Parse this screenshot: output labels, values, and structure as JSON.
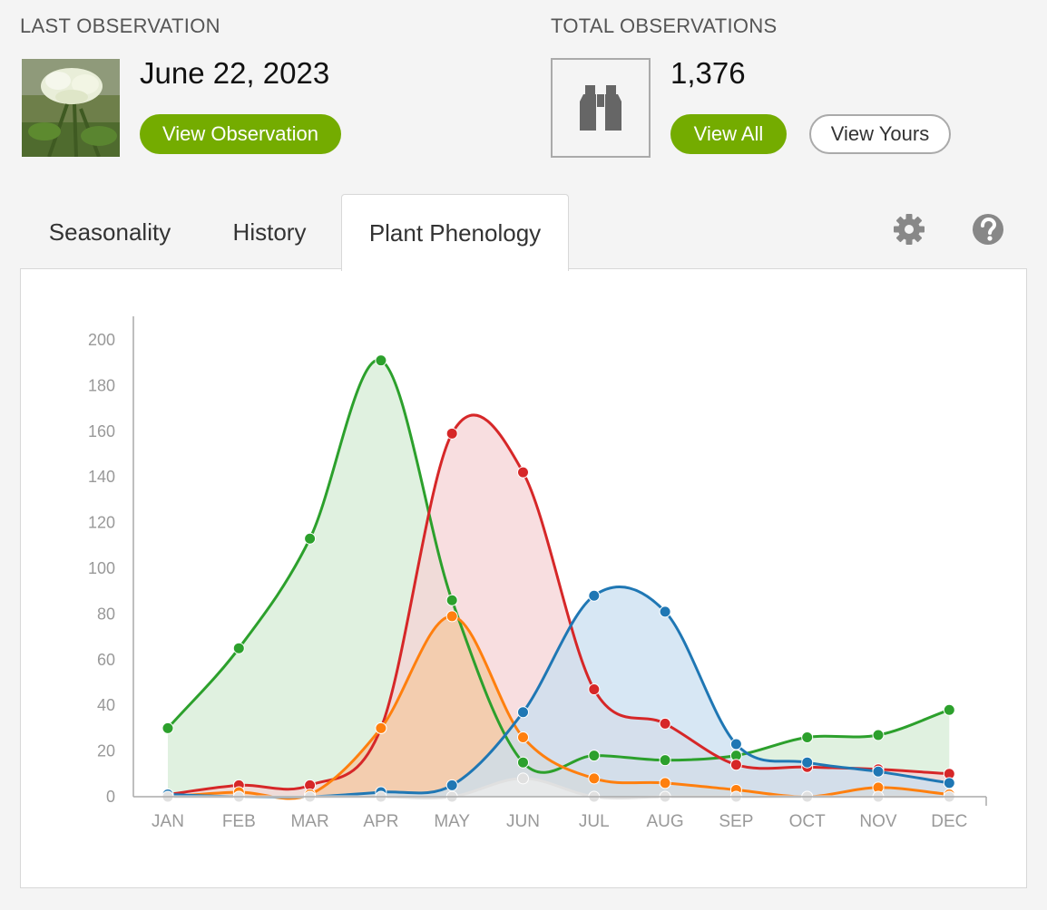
{
  "header": {
    "last_observation": {
      "label": "LAST OBSERVATION",
      "date": "June 22, 2023",
      "button_label": "View Observation"
    },
    "total_observations": {
      "label": "TOTAL OBSERVATIONS",
      "count": "1,376",
      "view_all_label": "View All",
      "view_yours_label": "View Yours"
    }
  },
  "tabs": [
    {
      "label": "Seasonality",
      "active": false
    },
    {
      "label": "History",
      "active": false
    },
    {
      "label": "Plant Phenology",
      "active": true
    }
  ],
  "icons": {
    "settings": "gear-icon",
    "help": "help-icon",
    "binoculars": "binoculars-icon"
  },
  "colors": {
    "accent_green": "#74ac00"
  },
  "chart_data": {
    "type": "area",
    "categories": [
      "JAN",
      "FEB",
      "MAR",
      "APR",
      "MAY",
      "JUN",
      "JUL",
      "AUG",
      "SEP",
      "OCT",
      "NOV",
      "DEC"
    ],
    "ylim": [
      0,
      200
    ],
    "yticks": [
      0,
      20,
      40,
      60,
      80,
      100,
      120,
      140,
      160,
      180,
      200
    ],
    "grid": false,
    "series": [
      {
        "color": "#2ca02c",
        "fill": "#d5ecd5",
        "values": [
          30,
          65,
          113,
          191,
          86,
          15,
          18,
          16,
          18,
          26,
          27,
          38
        ]
      },
      {
        "color": "#d62728",
        "fill": "#f5d3d5",
        "values": [
          1,
          5,
          5,
          30,
          159,
          142,
          47,
          32,
          14,
          13,
          12,
          10
        ]
      },
      {
        "color": "#ff7f0e",
        "fill": "#f4c8a2",
        "values": [
          0,
          2,
          1,
          30,
          79,
          26,
          8,
          6,
          3,
          0,
          4,
          1
        ]
      },
      {
        "color": "#1f77b4",
        "fill": "#c9dff0",
        "values": [
          1,
          0,
          0,
          2,
          5,
          37,
          88,
          81,
          23,
          15,
          11,
          6
        ]
      },
      {
        "color": "#e0e0e0",
        "fill": "#eeeeee",
        "values": [
          0,
          0,
          0,
          0,
          0,
          8,
          0,
          0,
          0,
          0,
          0,
          0
        ]
      }
    ]
  }
}
